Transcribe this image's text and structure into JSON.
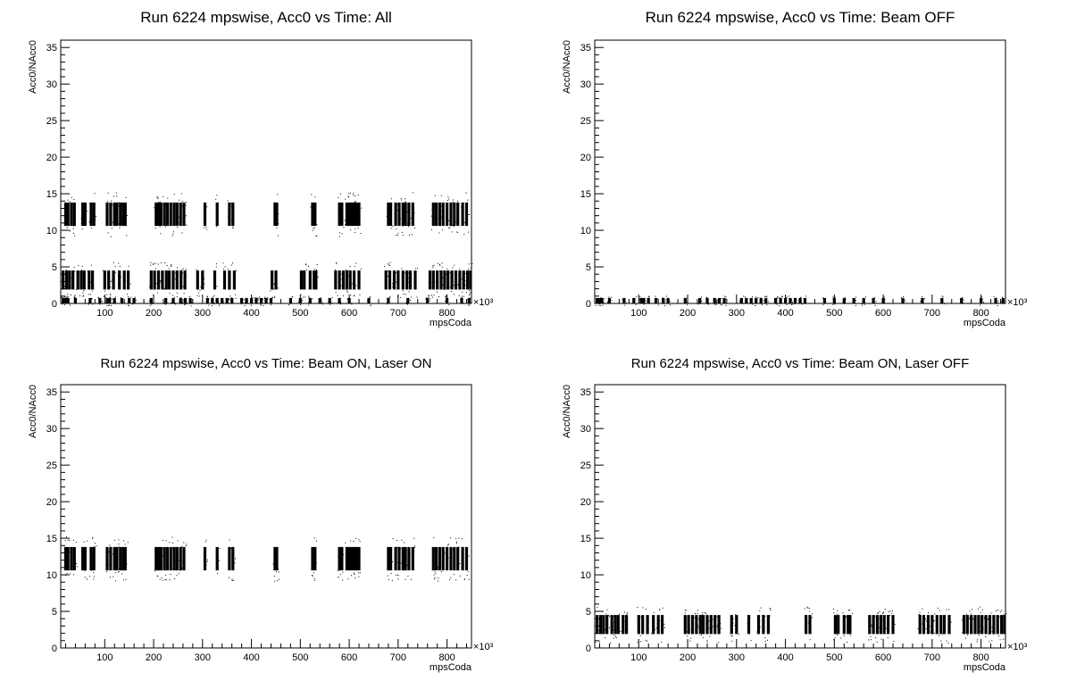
{
  "chart_data": [
    {
      "type": "scatter",
      "title": "Run 6224 mpswise, Acc0 vs Time: All",
      "xlabel": "mpsCoda",
      "ylabel": "Acc0/NAcc0",
      "x_multiplier": "×10³",
      "xlim": [
        10,
        850
      ],
      "ylim": [
        0,
        36
      ],
      "x_ticks": [
        100,
        200,
        300,
        400,
        500,
        600,
        700,
        800
      ],
      "y_ticks": [
        0,
        5,
        10,
        15,
        20,
        25,
        30,
        35
      ],
      "series": [
        {
          "band": "laser-on",
          "y_center": 12.2,
          "y_spread": 1.6,
          "x": [
            20,
            25,
            32,
            38,
            55,
            60,
            72,
            78,
            105,
            112,
            120,
            125,
            132,
            138,
            142,
            205,
            210,
            215,
            222,
            228,
            235,
            242,
            248,
            255,
            262,
            305,
            330,
            355,
            362,
            448,
            452,
            525,
            530,
            580,
            585,
            595,
            600,
            605,
            610,
            615,
            620,
            680,
            685,
            695,
            702,
            710,
            715,
            722,
            730,
            772,
            778,
            785,
            792,
            800,
            808,
            815,
            822,
            832,
            840
          ]
        },
        {
          "band": "laser-off",
          "y_center": 3.2,
          "y_spread": 1.3,
          "x": [
            15,
            22,
            28,
            35,
            45,
            52,
            58,
            68,
            75,
            100,
            108,
            118,
            130,
            140,
            148,
            195,
            202,
            210,
            218,
            226,
            232,
            240,
            248,
            256,
            264,
            290,
            300,
            325,
            345,
            355,
            365,
            442,
            450,
            502,
            508,
            520,
            528,
            532,
            572,
            580,
            588,
            595,
            602,
            610,
            620,
            675,
            683,
            692,
            700,
            710,
            718,
            725,
            735,
            765,
            772,
            780,
            788,
            795,
            802,
            810,
            818,
            826,
            834,
            842,
            848
          ]
        },
        {
          "band": "beam-off",
          "y_center": 0.4,
          "y_spread": 0.35,
          "x": [
            15,
            20,
            25,
            40,
            70,
            90,
            105,
            110,
            120,
            135,
            150,
            160,
            195,
            225,
            240,
            255,
            265,
            275,
            310,
            320,
            330,
            340,
            350,
            360,
            380,
            390,
            400,
            410,
            420,
            430,
            440,
            480,
            500,
            520,
            540,
            560,
            580,
            600,
            640,
            680,
            720,
            760,
            800,
            830,
            845
          ]
        }
      ]
    },
    {
      "type": "scatter",
      "title": "Run 6224 mpswise, Acc0 vs Time: Beam OFF",
      "xlabel": "mpsCoda",
      "ylabel": "Acc0/NAcc0",
      "x_multiplier": "×10³",
      "xlim": [
        10,
        850
      ],
      "ylim": [
        0,
        36
      ],
      "x_ticks": [
        100,
        200,
        300,
        400,
        500,
        600,
        700,
        800
      ],
      "y_ticks": [
        0,
        5,
        10,
        15,
        20,
        25,
        30,
        35
      ],
      "series": [
        {
          "band": "beam-off",
          "y_center": 0.4,
          "y_spread": 0.35,
          "x": [
            15,
            20,
            25,
            40,
            70,
            90,
            105,
            110,
            120,
            135,
            150,
            160,
            195,
            225,
            240,
            255,
            265,
            275,
            310,
            320,
            330,
            340,
            350,
            360,
            380,
            390,
            400,
            410,
            420,
            430,
            440,
            480,
            500,
            520,
            540,
            560,
            580,
            600,
            640,
            680,
            720,
            760,
            800,
            830,
            845
          ]
        }
      ]
    },
    {
      "type": "scatter",
      "title": "Run 6224 mpswise, Acc0 vs Time: Beam ON, Laser ON",
      "xlabel": "mpsCoda",
      "ylabel": "Acc0/NAcc0",
      "x_multiplier": "×10³",
      "xlim": [
        10,
        850
      ],
      "ylim": [
        0,
        36
      ],
      "x_ticks": [
        100,
        200,
        300,
        400,
        500,
        600,
        700,
        800
      ],
      "y_ticks": [
        0,
        5,
        10,
        15,
        20,
        25,
        30,
        35
      ],
      "series": [
        {
          "band": "laser-on",
          "y_center": 12.2,
          "y_spread": 1.6,
          "x": [
            20,
            25,
            32,
            38,
            55,
            60,
            72,
            78,
            105,
            112,
            120,
            125,
            132,
            138,
            142,
            205,
            210,
            215,
            222,
            228,
            235,
            242,
            248,
            255,
            262,
            305,
            330,
            355,
            362,
            448,
            452,
            525,
            530,
            580,
            585,
            595,
            600,
            605,
            610,
            615,
            620,
            680,
            685,
            695,
            702,
            710,
            715,
            722,
            730,
            772,
            778,
            785,
            792,
            800,
            808,
            815,
            822,
            832,
            840
          ]
        }
      ]
    },
    {
      "type": "scatter",
      "title": "Run 6224 mpswise, Acc0 vs Time: Beam ON, Laser OFF",
      "xlabel": "mpsCoda",
      "ylabel": "Acc0/NAcc0",
      "x_multiplier": "×10³",
      "xlim": [
        10,
        850
      ],
      "ylim": [
        0,
        36
      ],
      "x_ticks": [
        100,
        200,
        300,
        400,
        500,
        600,
        700,
        800
      ],
      "y_ticks": [
        0,
        5,
        10,
        15,
        20,
        25,
        30,
        35
      ],
      "series": [
        {
          "band": "laser-off",
          "y_center": 3.2,
          "y_spread": 1.3,
          "x": [
            15,
            22,
            28,
            35,
            45,
            52,
            58,
            68,
            75,
            100,
            108,
            118,
            130,
            140,
            148,
            195,
            202,
            210,
            218,
            226,
            232,
            240,
            248,
            256,
            264,
            290,
            300,
            325,
            345,
            355,
            365,
            442,
            450,
            502,
            508,
            520,
            528,
            532,
            572,
            580,
            588,
            595,
            602,
            610,
            620,
            675,
            683,
            692,
            700,
            710,
            718,
            725,
            735,
            765,
            772,
            780,
            788,
            795,
            802,
            810,
            818,
            826,
            834,
            842,
            848
          ]
        }
      ]
    }
  ]
}
